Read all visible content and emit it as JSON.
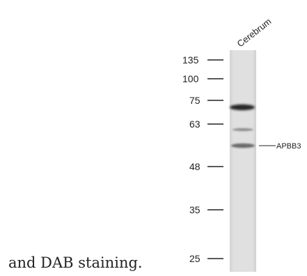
{
  "blot": {
    "sample_label": "Cerebrum",
    "markers": [
      "135",
      "100",
      "75",
      "63",
      "48",
      "35",
      "25"
    ],
    "target_label": "APBB3",
    "caption": "and DAB staining."
  },
  "colors": {
    "lane": "#dcdcdc",
    "band_strong": "#2a2a2a",
    "band_weak": "#7a7a7a",
    "text": "#222222"
  }
}
